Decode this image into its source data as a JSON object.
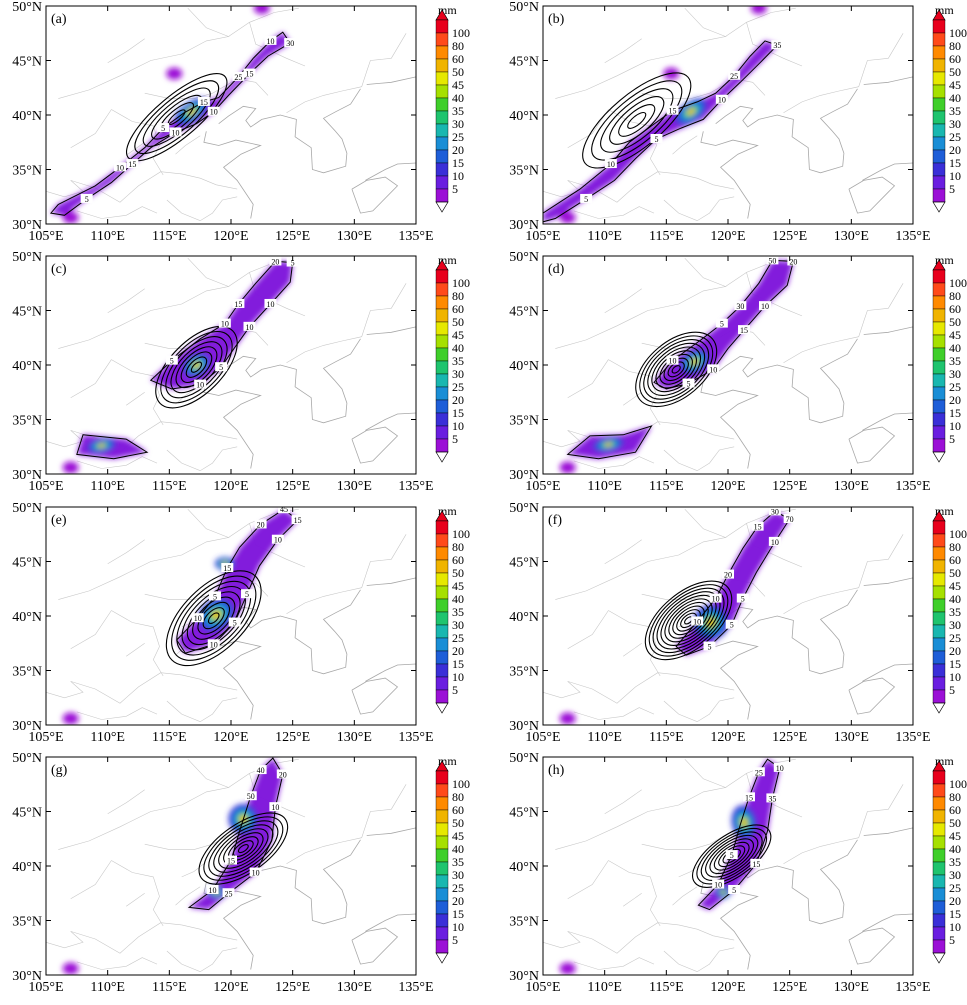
{
  "figure": {
    "panels": [
      {
        "label": "(a)",
        "contour_labels": [
          "10",
          "5",
          "15",
          "25",
          "10",
          "30",
          "15",
          "10",
          "10",
          "15",
          "5"
        ]
      },
      {
        "label": "(b)",
        "contour_labels": [
          "10",
          "15",
          "25",
          "35",
          "10",
          "5",
          "5"
        ]
      },
      {
        "label": "(c)",
        "contour_labels": [
          "5",
          "10",
          "15",
          "20",
          "5",
          "10",
          "10",
          "5",
          "10"
        ]
      },
      {
        "label": "(d)",
        "contour_labels": [
          "10",
          "5",
          "30",
          "50",
          "20",
          "10",
          "15",
          "10",
          "5"
        ]
      },
      {
        "label": "(e)",
        "contour_labels": [
          "10",
          "5",
          "15",
          "20",
          "45",
          "15",
          "10",
          "5",
          "5",
          "10"
        ]
      },
      {
        "label": "(f)",
        "contour_labels": [
          "10",
          "10",
          "20",
          "15",
          "30",
          "70",
          "10",
          "5",
          "5",
          "5"
        ]
      },
      {
        "label": "(g)",
        "contour_labels": [
          "10",
          "15",
          "50",
          "40",
          "20",
          "10",
          "10",
          "25"
        ]
      },
      {
        "label": "(h)",
        "contour_labels": [
          "10",
          "5",
          "15",
          "25",
          "10",
          "35",
          "15",
          "5"
        ]
      }
    ],
    "x_ticks": [
      "105°E",
      "110°E",
      "115°E",
      "120°E",
      "125°E",
      "130°E",
      "135°E"
    ],
    "y_ticks": [
      "50°N",
      "45°N",
      "40°N",
      "35°N",
      "30°N"
    ],
    "colorbar": {
      "unit": "mm",
      "labels": [
        "100",
        "80",
        "60",
        "50",
        "45",
        "40",
        "35",
        "30",
        "25",
        "20",
        "15",
        "10",
        "5"
      ],
      "colors": [
        "#e8001c",
        "#ff4a1a",
        "#ff8a00",
        "#f0b400",
        "#e6e800",
        "#a6e000",
        "#3fcf2a",
        "#1fc46e",
        "#19b7b0",
        "#1a8ed6",
        "#1e5ed8",
        "#3a2fd8",
        "#6a1ee0",
        "#9b10d6"
      ]
    },
    "coastline_color": "#a8a8a8",
    "contour_color": "#000000"
  }
}
